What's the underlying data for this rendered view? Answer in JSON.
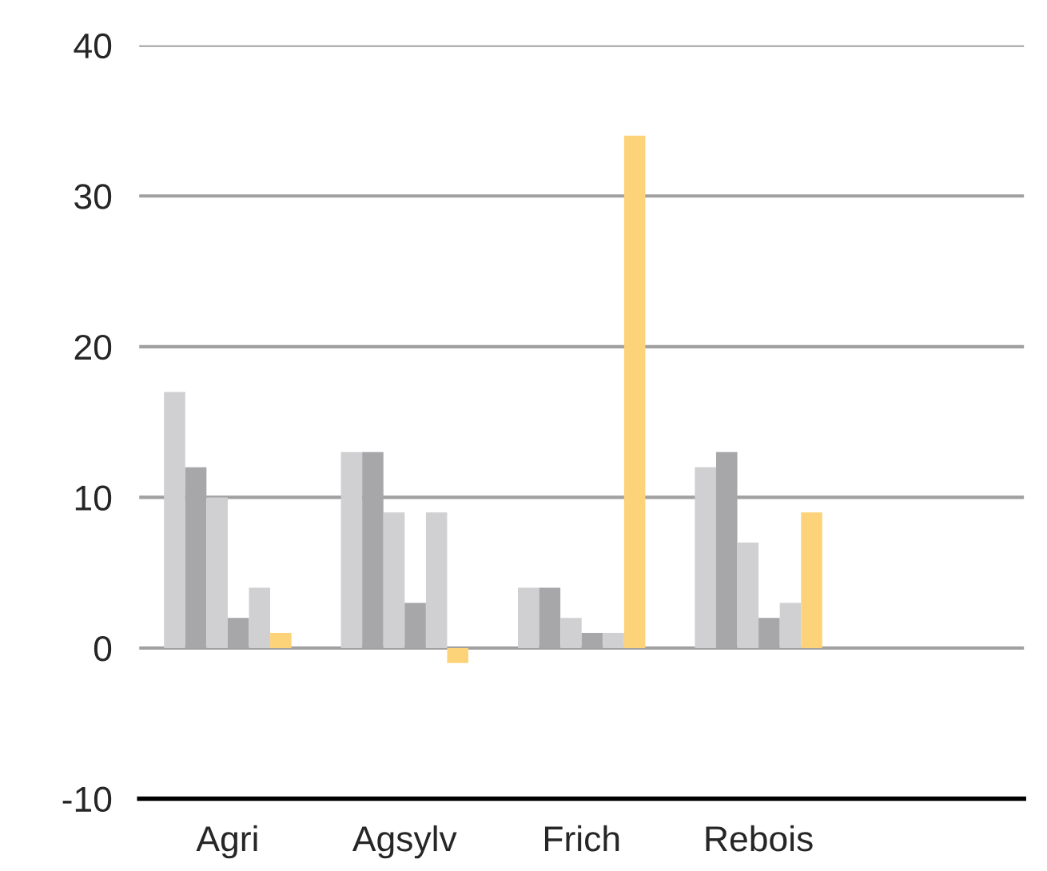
{
  "chart_data": {
    "type": "bar",
    "categories": [
      "Agri",
      "Agsylv",
      "Frich",
      "Rebois",
      null
    ],
    "series": [
      {
        "color": "#d0d0d2",
        "values": [
          17,
          13,
          4,
          12,
          null
        ]
      },
      {
        "color": "#a7a7a9",
        "values": [
          12,
          13,
          4,
          13,
          null
        ]
      },
      {
        "color": "#d0d0d2",
        "values": [
          10,
          9,
          2,
          7,
          null
        ]
      },
      {
        "color": "#a7a7a9",
        "values": [
          2,
          3,
          1,
          2,
          null
        ]
      },
      {
        "color": "#d0d0d2",
        "values": [
          4,
          9,
          1,
          3,
          null
        ]
      },
      {
        "color": "#fdd37a",
        "values": [
          1,
          -1,
          34,
          9,
          null
        ]
      }
    ],
    "ylim": [
      -10,
      40
    ],
    "yticks": [
      -10,
      0,
      10,
      20,
      30,
      40
    ],
    "grid": "y"
  }
}
